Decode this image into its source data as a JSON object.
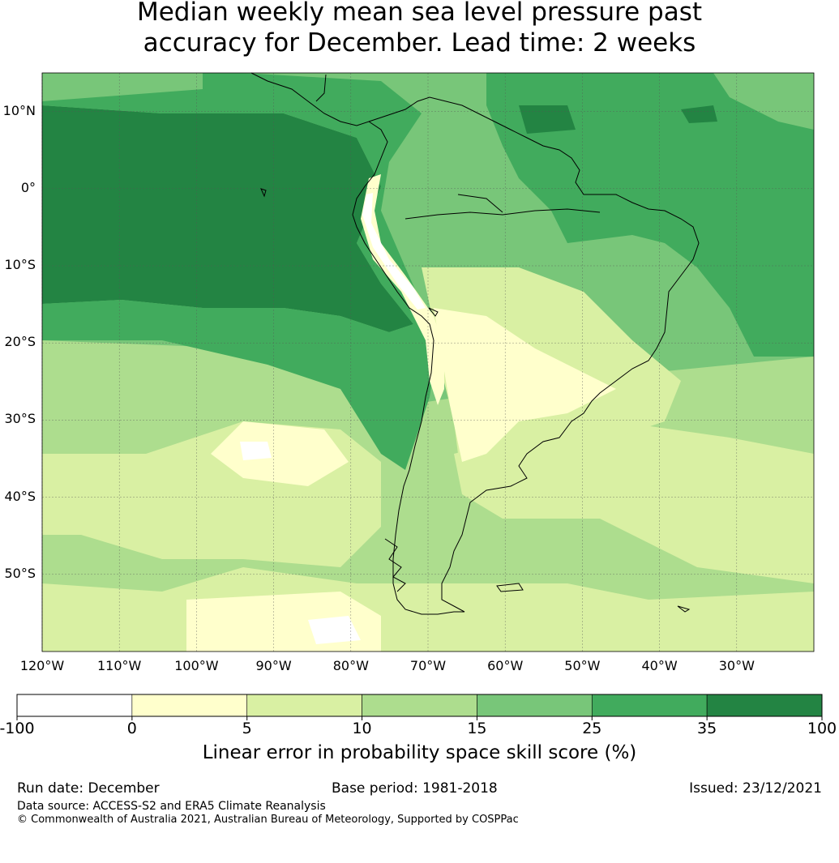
{
  "title": {
    "line1": "Median weekly mean sea level pressure past",
    "line2": "accuracy for December. Lead time: 2 weeks"
  },
  "map": {
    "lat_labels": [
      "10°N",
      "0°",
      "10°S",
      "20°S",
      "30°S",
      "40°S",
      "50°S"
    ],
    "lon_labels": [
      "120°W",
      "110°W",
      "100°W",
      "90°W",
      "80°W",
      "70°W",
      "60°W",
      "50°W",
      "40°W",
      "30°W"
    ],
    "extent": {
      "lon_min": -120,
      "lon_max": -20,
      "lat_min": -60,
      "lat_max": 15
    }
  },
  "colorbar": {
    "ticks": [
      "-100",
      "0",
      "5",
      "10",
      "15",
      "25",
      "35",
      "100"
    ],
    "colors": [
      "#ffffff",
      "#ffffcc",
      "#d9f0a3",
      "#addd8e",
      "#78c679",
      "#41ab5d",
      "#238443"
    ],
    "label": "Linear error in probability space skill score (%)"
  },
  "footer": {
    "run_date": "Run date: December",
    "base_period": "Base period: 1981-2018",
    "issued": "Issued: 23/12/2021",
    "data_source": "Data source: ACCESS-S2 and ERA5 Climate Reanalysis",
    "copyright": "© Commonwealth of Australia 2021, Australian Bureau of Meteorology, Supported by COSPPac"
  }
}
